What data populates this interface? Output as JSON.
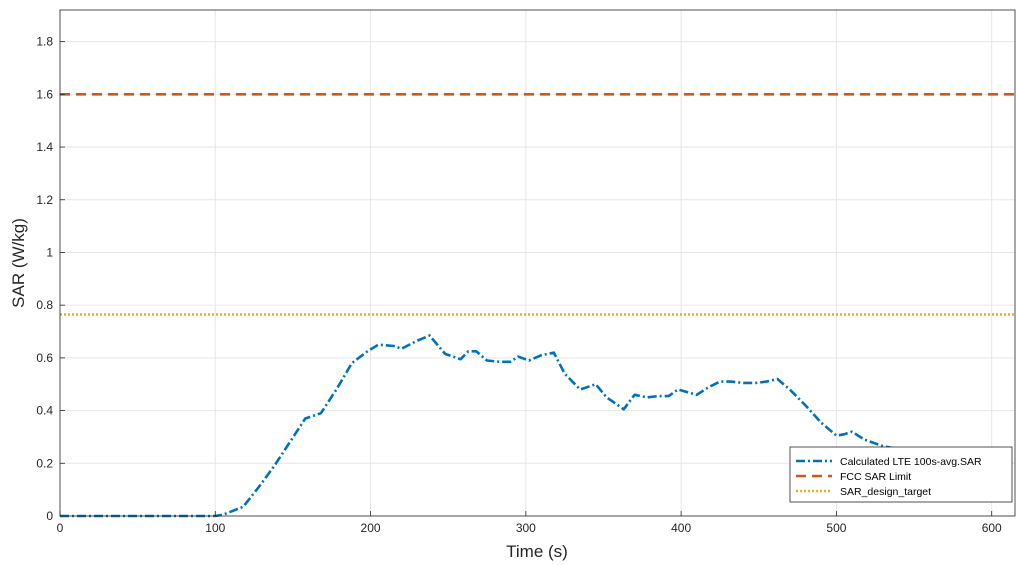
{
  "chart_data": {
    "type": "line",
    "xlabel": "Time (s)",
    "ylabel": "SAR (W/kg)",
    "xlim": [
      0,
      615
    ],
    "ylim": [
      0,
      1.92
    ],
    "x_ticks": [
      "0",
      "100",
      "200",
      "300",
      "400",
      "500",
      "600"
    ],
    "y_ticks": [
      "0",
      "0.2",
      "0.4",
      "0.6",
      "0.8",
      "1",
      "1.2",
      "1.4",
      "1.6",
      "1.8"
    ],
    "grid": true,
    "legend_position": "bottom-right",
    "series": [
      {
        "name": "Calculated LTE 100s-avg.SAR",
        "style": "dashdot",
        "color": "#0072BD",
        "x": [
          0,
          100,
          105,
          118,
          128,
          138,
          148,
          158,
          168,
          178,
          188,
          198,
          205,
          215,
          220,
          230,
          238,
          248,
          258,
          263,
          268,
          275,
          283,
          290,
          295,
          302,
          310,
          318,
          325,
          335,
          345,
          352,
          357,
          363,
          370,
          378,
          385,
          392,
          398,
          404,
          410,
          418,
          425,
          432,
          440,
          448,
          455,
          462,
          470,
          480,
          490,
          500,
          505,
          510,
          518,
          530,
          548
        ],
        "y": [
          0,
          0,
          0.005,
          0.035,
          0.11,
          0.19,
          0.28,
          0.37,
          0.39,
          0.48,
          0.58,
          0.625,
          0.65,
          0.645,
          0.635,
          0.665,
          0.685,
          0.615,
          0.595,
          0.625,
          0.625,
          0.59,
          0.585,
          0.585,
          0.605,
          0.59,
          0.61,
          0.62,
          0.54,
          0.48,
          0.5,
          0.45,
          0.43,
          0.405,
          0.46,
          0.45,
          0.455,
          0.455,
          0.48,
          0.47,
          0.46,
          0.49,
          0.51,
          0.51,
          0.505,
          0.505,
          0.51,
          0.52,
          0.48,
          0.42,
          0.355,
          0.305,
          0.31,
          0.32,
          0.29,
          0.265,
          0.245
        ]
      },
      {
        "name": "FCC SAR Limit",
        "style": "dashed",
        "color": "#D95319",
        "x": [
          0,
          615
        ],
        "y": [
          1.6,
          1.6
        ]
      },
      {
        "name": "SAR_design_target",
        "style": "dotted",
        "color": "#EDB120",
        "x": [
          0,
          615
        ],
        "y": [
          0.765,
          0.765
        ]
      }
    ]
  }
}
